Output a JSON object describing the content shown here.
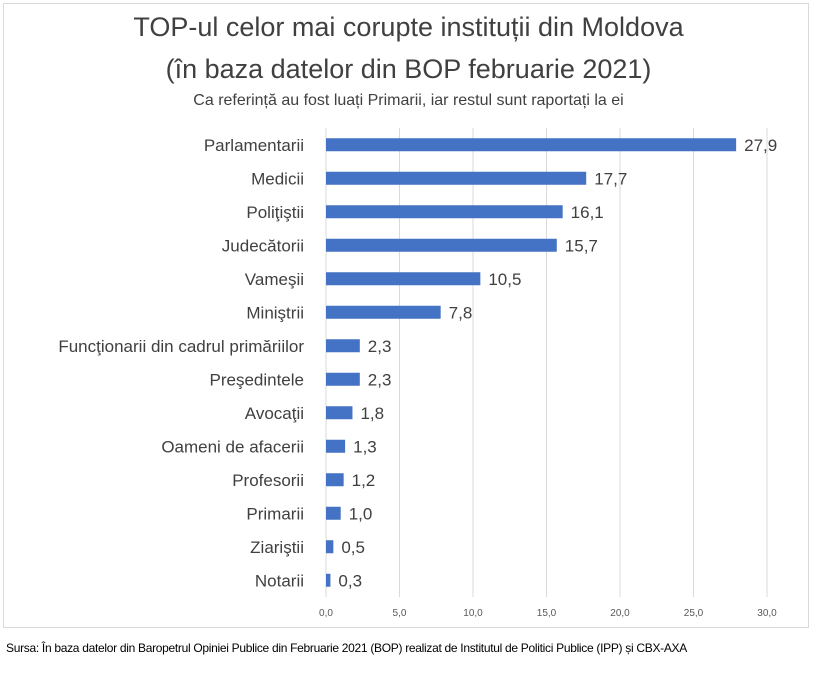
{
  "chart_data": {
    "type": "bar",
    "orientation": "horizontal",
    "title": "TOP-ul celor mai corupte instituții din Moldova (în baza datelor din BOP februarie 2021)",
    "title_lines": [
      "TOP-ul celor mai corupte instituții din Moldova",
      "(în baza datelor din BOP februarie 2021)"
    ],
    "subtitle": "Ca referință  au fost luați Primarii, iar restul sunt raportați la ei",
    "categories": [
      "Parlamentarii",
      "Medicii",
      "Poliţiştii",
      "Judecătorii",
      "Vameşii",
      "Miniştrii",
      "Funcţionarii din cadrul primăriilor",
      "Preşedintele",
      "Avocaţii",
      "Oameni de afacerii",
      "Profesorii",
      "Primarii",
      "Ziariştii",
      "Notarii"
    ],
    "values": [
      27.9,
      17.7,
      16.1,
      15.7,
      10.5,
      7.8,
      2.3,
      2.3,
      1.8,
      1.3,
      1.2,
      1.0,
      0.5,
      0.3
    ],
    "value_labels": [
      "27,9",
      "17,7",
      "16,1",
      "15,7",
      "10,5",
      "7,8",
      "2,3",
      "2,3",
      "1,8",
      "1,3",
      "1,2",
      "1,0",
      "0,5",
      "0,3"
    ],
    "xlim": [
      0,
      30
    ],
    "x_ticks": [
      0,
      5,
      10,
      15,
      20,
      25,
      30
    ],
    "x_tick_labels": [
      "0,0",
      "5,0",
      "10,0",
      "15,0",
      "20,0",
      "25,0",
      "30,0"
    ],
    "xlabel": "",
    "ylabel": "",
    "grid": true,
    "legend": "none",
    "bar_color": "#4472c4",
    "grid_color": "#d9d9d9"
  },
  "source_text": "Sursa: În baza datelor din Baropetrul Opiniei Publice din Februarie 2021 (BOP) realizat de Institutul de Politici Publice (IPP) și CBX-AXA"
}
